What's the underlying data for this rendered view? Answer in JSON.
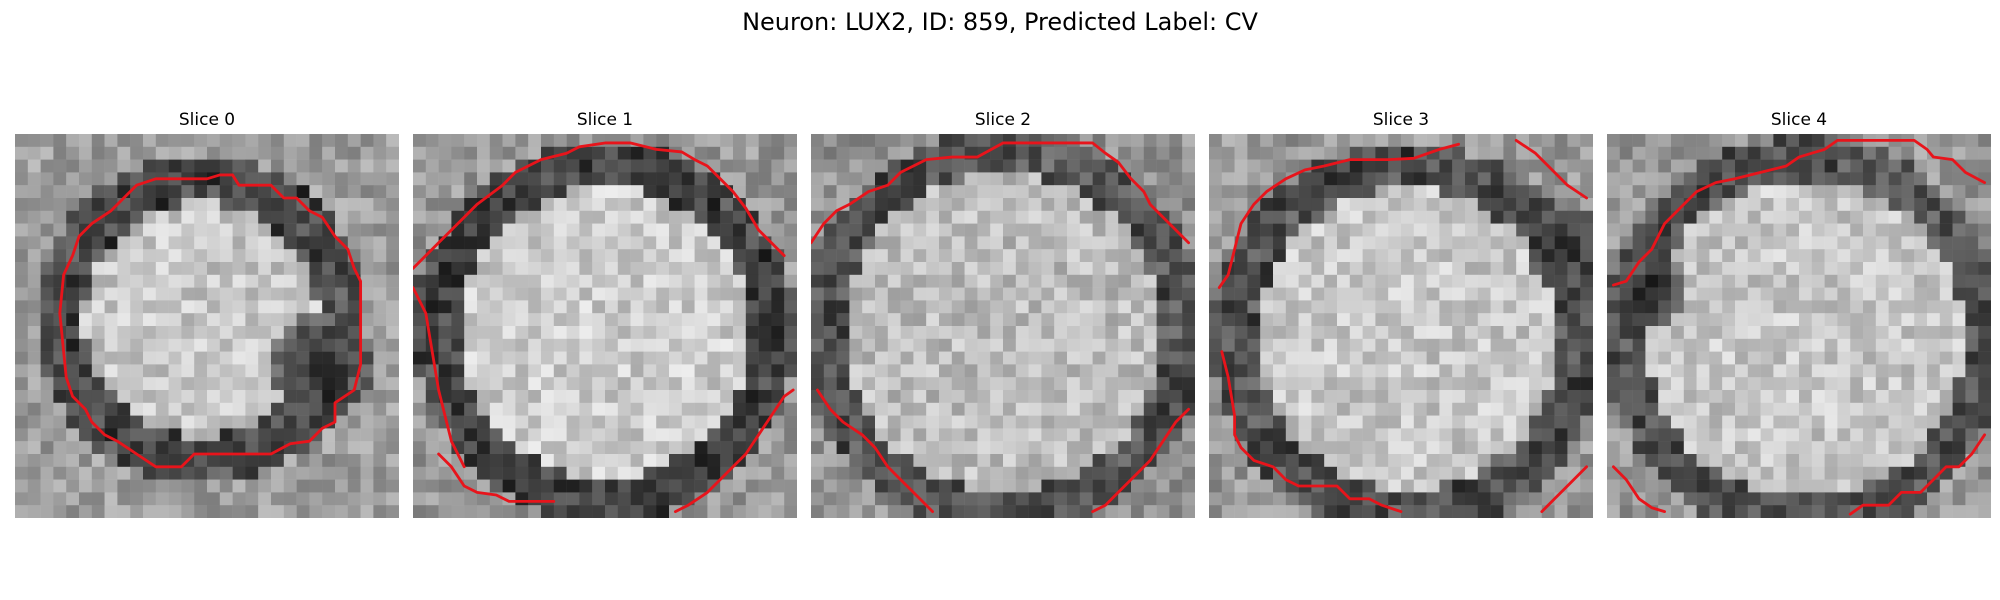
{
  "figure": {
    "suptitle": "Neuron: LUX2, ID: 859, Predicted Label: CV"
  },
  "panels": [
    {
      "title": "Slice 0"
    },
    {
      "title": "Slice 1"
    },
    {
      "title": "Slice 2"
    },
    {
      "title": "Slice 3"
    },
    {
      "title": "Slice 4"
    }
  ],
  "colors": {
    "contour": "#e8141b",
    "background": "#ffffff"
  }
}
